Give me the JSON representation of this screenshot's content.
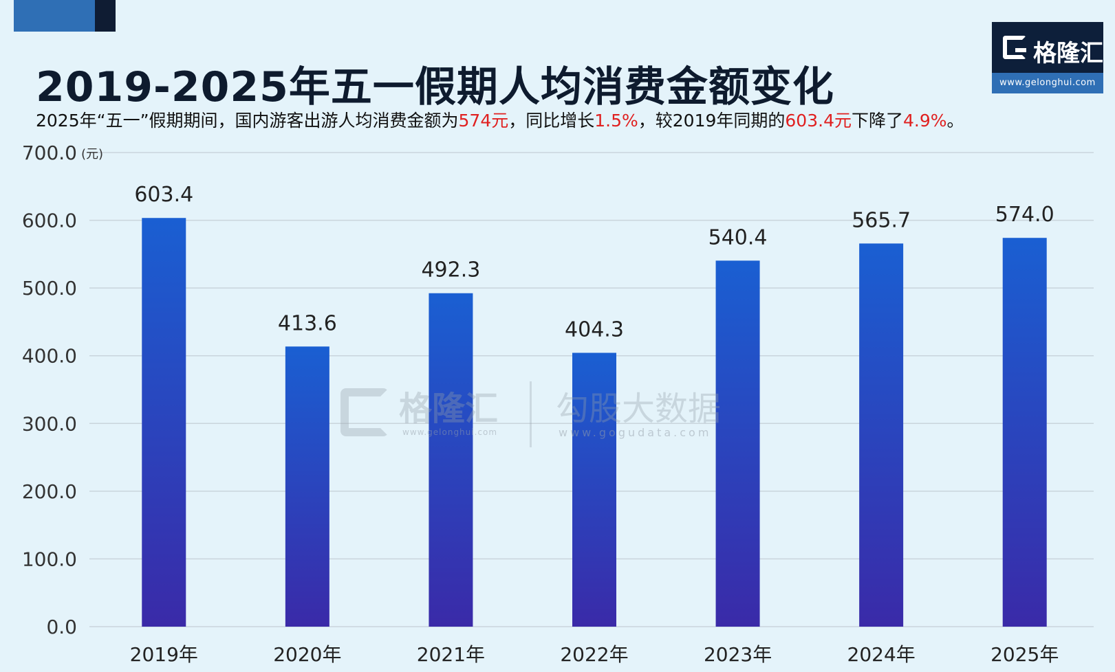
{
  "header": {
    "title": "2019-2025年五一假期人均消费金额变化",
    "subtitle_parts": [
      {
        "text": "2025年“五一”假期期间，国内游客出游人均消费金额为",
        "highlight": false
      },
      {
        "text": "574元",
        "highlight": true
      },
      {
        "text": "，同比增长",
        "highlight": false
      },
      {
        "text": "1.5%",
        "highlight": true
      },
      {
        "text": "，较2019年同期的",
        "highlight": false
      },
      {
        "text": "603.4元",
        "highlight": true
      },
      {
        "text": "下降了",
        "highlight": false
      },
      {
        "text": "4.9%",
        "highlight": true
      },
      {
        "text": "。",
        "highlight": false
      }
    ]
  },
  "logo": {
    "name": "格隆汇",
    "url": "www.gelonghui.com"
  },
  "watermark": {
    "brand": "格隆汇",
    "brand_url": "www.gelonghui.com",
    "brand2": "勾股大数据",
    "brand2_url": "www.gogudata.com"
  },
  "colors": {
    "background": "#e4f3fa",
    "bar_top": "#1a5fd2",
    "bar_bottom": "#3a2aa8",
    "highlight": "#e02020",
    "title": "#0e1b2e",
    "gridline": "#c9d4dc"
  },
  "chart_data": {
    "type": "bar",
    "title": "2019-2025年五一假期人均消费金额变化",
    "unit_label": "(元)",
    "categories": [
      "2019年",
      "2020年",
      "2021年",
      "2022年",
      "2023年",
      "2024年",
      "2025年"
    ],
    "values": [
      603.4,
      413.6,
      492.3,
      404.3,
      540.4,
      565.7,
      574.0
    ],
    "value_labels": [
      "603.4",
      "413.6",
      "492.3",
      "404.3",
      "540.4",
      "565.7",
      "574.0"
    ],
    "y_ticks": [
      "0.0",
      "100.0",
      "200.0",
      "300.0",
      "400.0",
      "500.0",
      "600.0",
      "700.0"
    ],
    "ylim": [
      0,
      700
    ],
    "grid": true,
    "legend": "none"
  }
}
